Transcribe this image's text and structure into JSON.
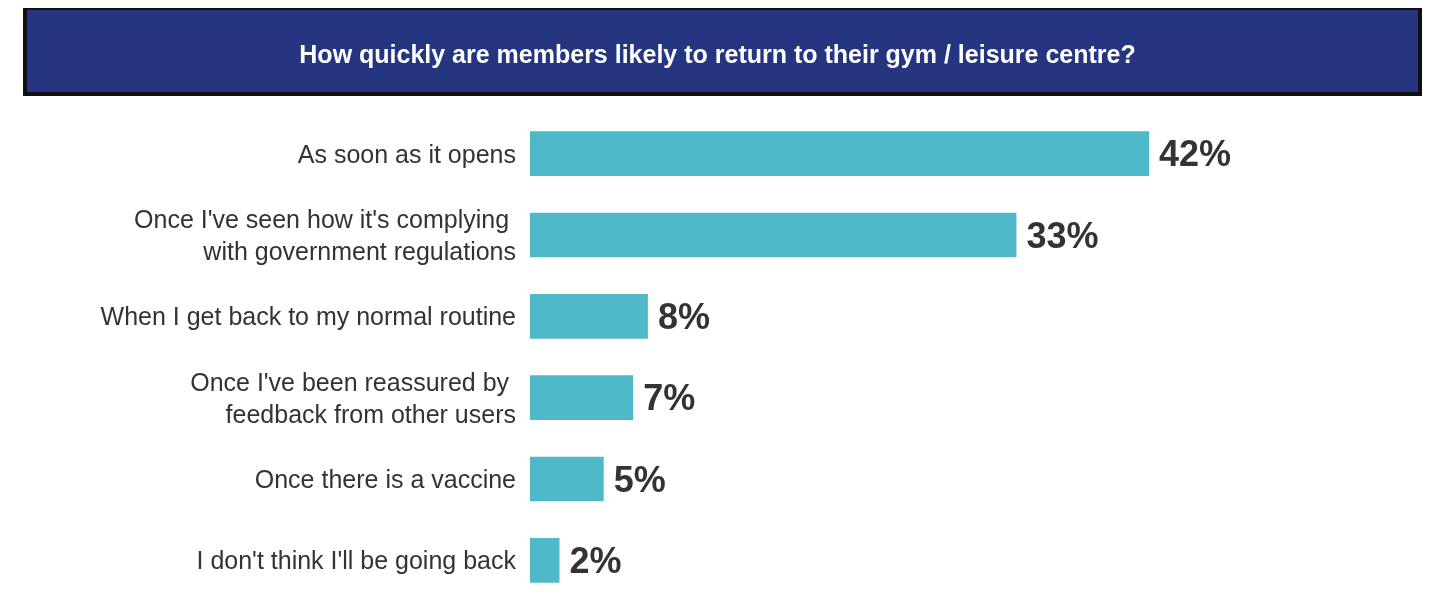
{
  "chart_data": {
    "type": "bar",
    "orientation": "horizontal",
    "title": "How quickly are members likely to return to their gym / leisure centre?",
    "categories": [
      "As soon as it opens",
      "Once I've seen how it's complying with government regulations",
      "When I get back to my normal routine",
      "Once I've been reassured by feedback from other users",
      "Once there is a vaccine",
      "I don't think I'll be going back"
    ],
    "values": [
      42,
      33,
      8,
      7,
      5,
      2
    ],
    "value_labels": [
      "42%",
      "33%",
      "8%",
      "7%",
      "5%",
      "2%"
    ],
    "color": "#4fb8c9",
    "grid": false
  }
}
